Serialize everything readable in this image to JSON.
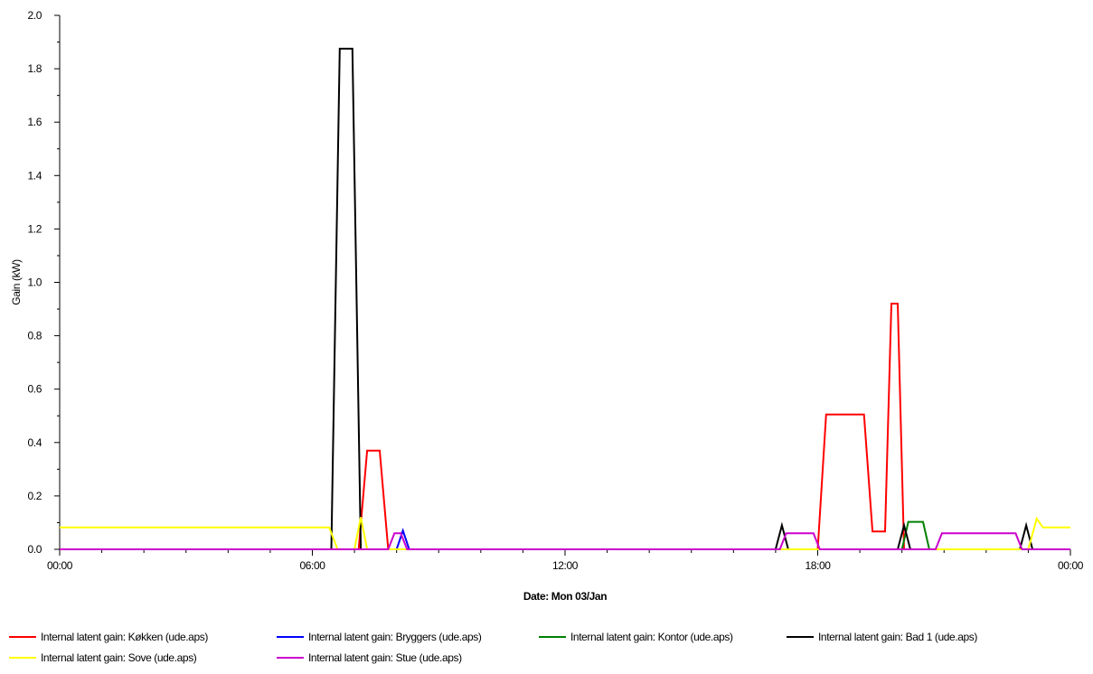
{
  "chart_data": {
    "type": "line",
    "title": "",
    "xlabel": "Date: Mon 03/Jan",
    "ylabel": "Gain (kW)",
    "xlim": [
      0,
      24
    ],
    "ylim": [
      0,
      2.0
    ],
    "y_ticks": [
      0.0,
      0.2,
      0.4,
      0.6,
      0.8,
      1.0,
      1.2,
      1.4,
      1.6,
      1.8,
      2.0
    ],
    "y_tick_labels": [
      "0.0",
      "0.2",
      "0.4",
      "0.6",
      "0.8",
      "1.0",
      "1.2",
      "1.4",
      "1.6",
      "1.8",
      "2.0"
    ],
    "x_ticks": [
      0,
      6,
      12,
      18,
      24
    ],
    "x_tick_labels": [
      "00:00",
      "06:00",
      "12:00",
      "18:00",
      "00:00"
    ],
    "grid": false,
    "legend_position": "bottom",
    "series": [
      {
        "name": "Internal latent gain: Køkken (ude.aps)",
        "color": "#ff0000",
        "points": [
          [
            0,
            0
          ],
          [
            7.1,
            0
          ],
          [
            7.3,
            0.37
          ],
          [
            7.6,
            0.37
          ],
          [
            7.8,
            0
          ],
          [
            18.0,
            0
          ],
          [
            18.2,
            0.505
          ],
          [
            19.1,
            0.505
          ],
          [
            19.3,
            0.067
          ],
          [
            19.6,
            0.067
          ],
          [
            19.75,
            0.92
          ],
          [
            19.9,
            0.92
          ],
          [
            20.05,
            0
          ],
          [
            24,
            0
          ]
        ]
      },
      {
        "name": "Internal latent gain: Bryggers (ude.aps)",
        "color": "#0000ff",
        "points": [
          [
            0,
            0
          ],
          [
            8.0,
            0
          ],
          [
            8.15,
            0.07
          ],
          [
            8.3,
            0
          ],
          [
            24,
            0
          ]
        ]
      },
      {
        "name": "Internal latent gain: Kontor (ude.aps)",
        "color": "#008000",
        "points": [
          [
            0,
            0
          ],
          [
            20.0,
            0
          ],
          [
            20.15,
            0.103
          ],
          [
            20.5,
            0.103
          ],
          [
            20.65,
            0
          ],
          [
            24,
            0
          ]
        ]
      },
      {
        "name": "Internal latent gain: Bad 1 (ude.aps)",
        "color": "#000000",
        "points": [
          [
            0,
            0
          ],
          [
            6.45,
            0
          ],
          [
            6.65,
            1.875
          ],
          [
            6.95,
            1.875
          ],
          [
            7.15,
            0
          ],
          [
            17.0,
            0
          ],
          [
            17.15,
            0.09
          ],
          [
            17.3,
            0
          ],
          [
            19.9,
            0
          ],
          [
            20.05,
            0.09
          ],
          [
            20.2,
            0
          ],
          [
            22.8,
            0
          ],
          [
            22.95,
            0.09
          ],
          [
            23.1,
            0
          ],
          [
            24,
            0
          ]
        ]
      },
      {
        "name": "Internal latent gain: Sove (ude.aps)",
        "color": "#ffff00",
        "points": [
          [
            0,
            0.082
          ],
          [
            6.4,
            0.082
          ],
          [
            6.6,
            0
          ],
          [
            7.0,
            0
          ],
          [
            7.15,
            0.12
          ],
          [
            7.3,
            0
          ],
          [
            17.0,
            0
          ],
          [
            18.0,
            0
          ],
          [
            20.5,
            0
          ],
          [
            23.0,
            0
          ],
          [
            23.2,
            0.115
          ],
          [
            23.35,
            0.082
          ],
          [
            24,
            0.082
          ]
        ]
      },
      {
        "name": "Internal latent gain: Stue (ude.aps)",
        "color": "#cc00cc",
        "points": [
          [
            0,
            0
          ],
          [
            7.8,
            0
          ],
          [
            7.95,
            0.06
          ],
          [
            8.1,
            0.06
          ],
          [
            8.25,
            0
          ],
          [
            17.1,
            0
          ],
          [
            17.25,
            0.06
          ],
          [
            17.9,
            0.06
          ],
          [
            18.05,
            0
          ],
          [
            20.8,
            0
          ],
          [
            20.95,
            0.06
          ],
          [
            22.7,
            0.06
          ],
          [
            22.85,
            0
          ],
          [
            24,
            0
          ]
        ]
      }
    ]
  }
}
